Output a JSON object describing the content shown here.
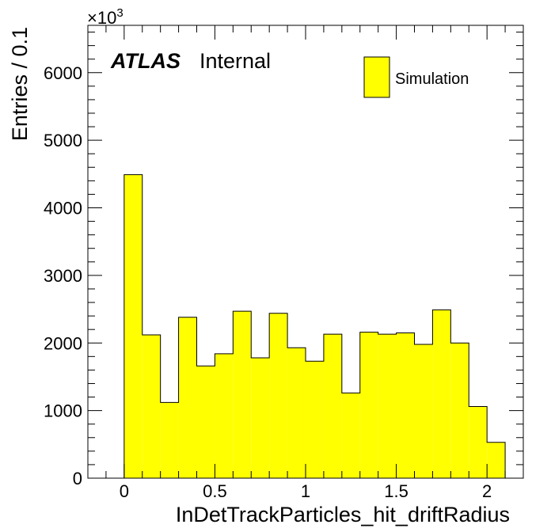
{
  "chart_data": {
    "type": "bar",
    "experiment_label": "ATLAS",
    "status_label": "Internal",
    "xlabel": "InDetTrackParticles_hit_driftRadius",
    "ylabel": "Entries / 0.1",
    "y_multiplier": "×10",
    "y_multiplier_exp": "3",
    "xlim": [
      -0.2,
      2.2
    ],
    "ylim": [
      0,
      6700
    ],
    "x_ticks": [
      0,
      0.5,
      1,
      1.5,
      2
    ],
    "x_tick_labels": [
      "0",
      "0.5",
      "1",
      "1.5",
      "2"
    ],
    "y_ticks": [
      0,
      1000,
      2000,
      3000,
      4000,
      5000,
      6000
    ],
    "y_tick_labels": [
      "0",
      "1000",
      "2000",
      "3000",
      "4000",
      "5000",
      "6000"
    ],
    "bin_width": 0.1,
    "bin_edges": [
      0,
      0.1,
      0.2,
      0.3,
      0.4,
      0.5,
      0.6,
      0.7,
      0.8,
      0.9,
      1.0,
      1.1,
      1.2,
      1.3,
      1.4,
      1.5,
      1.6,
      1.7,
      1.8,
      1.9,
      2.0,
      2.1
    ],
    "series": [
      {
        "name": "Simulation",
        "color": "#ffff00",
        "values": [
          4490,
          2120,
          1120,
          2380,
          1660,
          1840,
          2470,
          1780,
          2440,
          1930,
          1730,
          2130,
          1260,
          2160,
          2130,
          2150,
          1980,
          2490,
          2000,
          1060,
          530
        ]
      }
    ],
    "legend_position": "top-right",
    "grid": false
  }
}
